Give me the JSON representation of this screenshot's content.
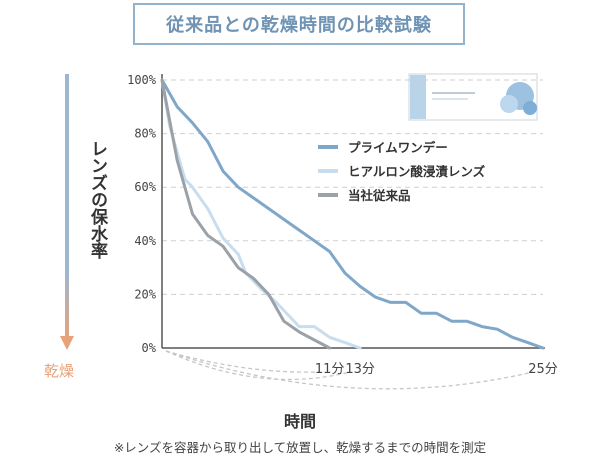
{
  "title": "従来品との乾燥時間の比較試験",
  "ylabel_text": "レンズの保水率",
  "dry_label": "乾燥",
  "xlabel_text": "時間",
  "note": "※レンズを容器から取り出して放置し、乾燥するまでの時間を測定",
  "colors": {
    "title_border": "#93b3cc",
    "title_text": "#6f93b3",
    "arrow": "#9cb8d0",
    "arrow_tip": "#e8a277",
    "grid": "#cfcfcf"
  },
  "chart_data": {
    "type": "line",
    "title": "従来品との乾燥時間の比較試験",
    "xlabel": "時間",
    "ylabel": "レンズの保水率",
    "y_unit": "%",
    "x_unit": "分",
    "ylim": [
      0,
      100
    ],
    "xlim": [
      0,
      25
    ],
    "yticks": [
      "100%",
      "80%",
      "60%",
      "40%",
      "20%",
      "0%"
    ],
    "ytick_values": [
      100,
      80,
      60,
      40,
      20,
      0
    ],
    "grid": "dashed horizontal",
    "legend_position": "top-right",
    "end_labels": [
      {
        "x": 11,
        "label": "11分"
      },
      {
        "x": 13,
        "label": "13分"
      },
      {
        "x": 25,
        "label": "25分"
      }
    ],
    "series": [
      {
        "name": "プライムワンデー",
        "color": "#7fa7c9",
        "points": [
          [
            0,
            100
          ],
          [
            1,
            90
          ],
          [
            2,
            84
          ],
          [
            3,
            77
          ],
          [
            4,
            66
          ],
          [
            5,
            60
          ],
          [
            6,
            56
          ],
          [
            7,
            52
          ],
          [
            8,
            48
          ],
          [
            9,
            44
          ],
          [
            10,
            40
          ],
          [
            11,
            36
          ],
          [
            12,
            28
          ],
          [
            13,
            23
          ],
          [
            14,
            19
          ],
          [
            15,
            17
          ],
          [
            16,
            17
          ],
          [
            17,
            13
          ],
          [
            18,
            13
          ],
          [
            19,
            10
          ],
          [
            20,
            10
          ],
          [
            21,
            8
          ],
          [
            22,
            7
          ],
          [
            23,
            4
          ],
          [
            24,
            2
          ],
          [
            25,
            0
          ]
        ]
      },
      {
        "name": "ヒアルロン酸浸漬レンズ",
        "color": "#c8ddee",
        "points": [
          [
            0,
            100
          ],
          [
            0.5,
            83
          ],
          [
            1,
            73
          ],
          [
            1.5,
            63
          ],
          [
            2,
            60
          ],
          [
            3,
            52
          ],
          [
            4,
            41
          ],
          [
            5,
            35
          ],
          [
            5.5,
            28
          ],
          [
            6.5,
            22
          ],
          [
            7.5,
            17
          ],
          [
            8,
            14
          ],
          [
            9,
            8
          ],
          [
            10,
            8
          ],
          [
            11,
            4
          ],
          [
            12,
            2
          ],
          [
            13,
            0
          ]
        ]
      },
      {
        "name": "当社従来品",
        "color": "#9aa1a8",
        "points": [
          [
            0,
            100
          ],
          [
            0.5,
            85
          ],
          [
            1,
            70
          ],
          [
            2,
            50
          ],
          [
            3,
            42
          ],
          [
            3.5,
            40
          ],
          [
            4,
            38
          ],
          [
            5,
            30
          ],
          [
            6,
            26
          ],
          [
            7,
            20
          ],
          [
            8,
            10
          ],
          [
            9,
            6
          ],
          [
            10,
            3
          ],
          [
            11,
            0
          ]
        ]
      }
    ]
  }
}
